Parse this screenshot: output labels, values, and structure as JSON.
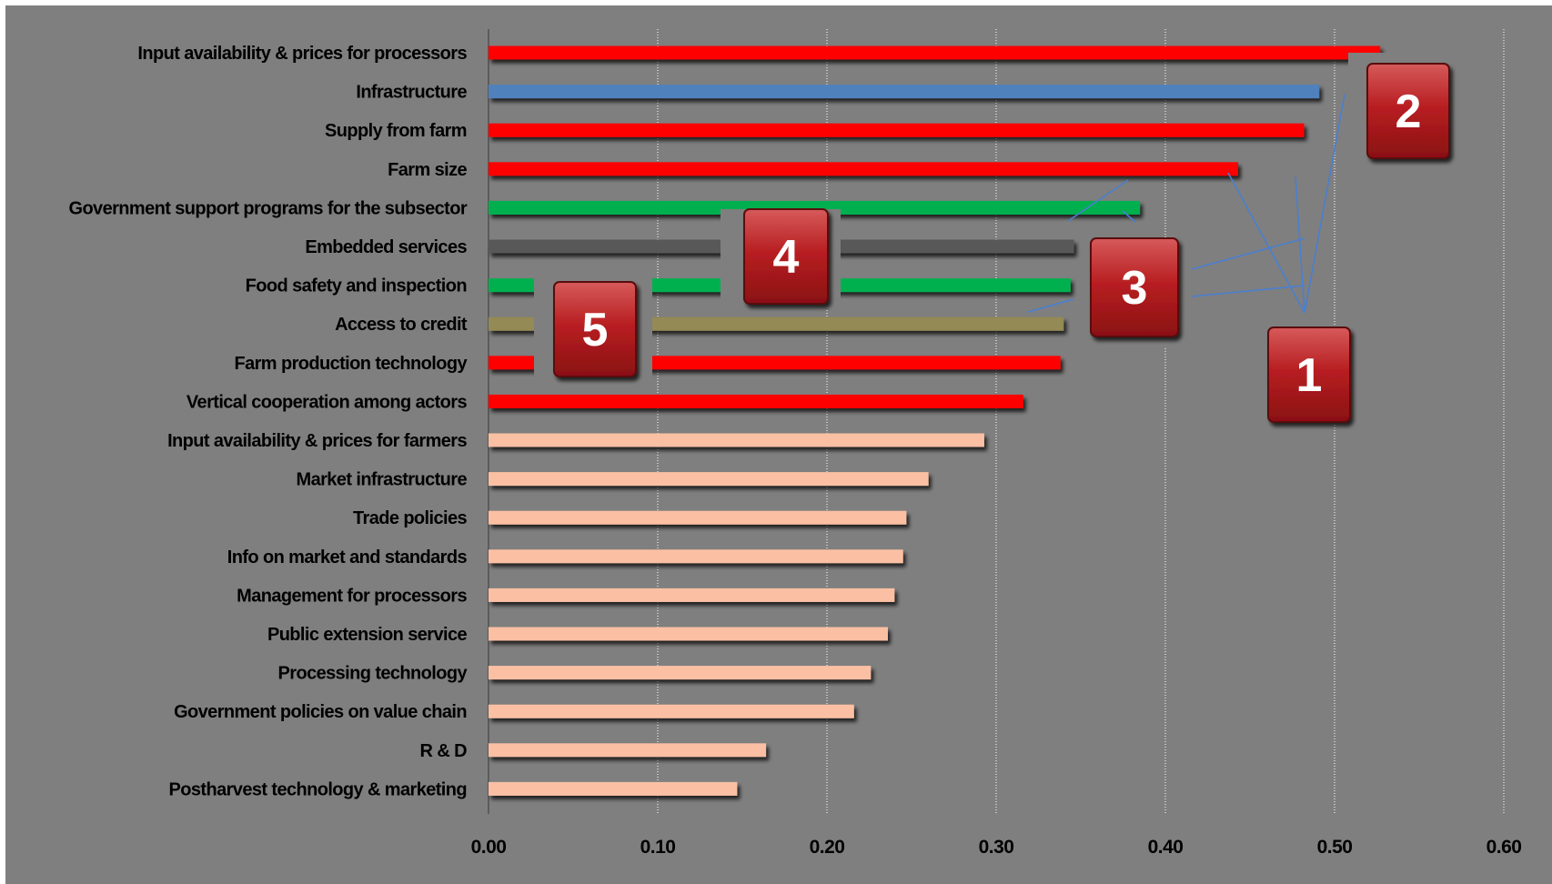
{
  "chart_data": {
    "type": "bar",
    "orientation": "horizontal",
    "title": "",
    "xlabel": "",
    "ylabel": "",
    "xlim": [
      0,
      0.6
    ],
    "x_ticks": [
      "0.00",
      "0.10",
      "0.20",
      "0.30",
      "0.40",
      "0.50",
      "0.60"
    ],
    "grid": true,
    "legend": "none",
    "categories": [
      "Input availability & prices for processors",
      "Infrastructure",
      "Supply from farm",
      "Farm size",
      "Government support programs for the subsector",
      "Embedded services",
      "Food safety and inspection",
      "Access to credit",
      "Farm production technology",
      "Vertical cooperation among actors",
      "Input availability & prices for farmers",
      "Market infrastructure",
      "Trade policies",
      "Info on market and standards",
      "Management for processors",
      "Public extension  service",
      "Processing technology",
      "Government policies on value chain",
      "R & D",
      "Postharvest technology & marketing"
    ],
    "values": [
      0.527,
      0.491,
      0.482,
      0.443,
      0.385,
      0.346,
      0.344,
      0.34,
      0.338,
      0.316,
      0.293,
      0.26,
      0.247,
      0.245,
      0.24,
      0.236,
      0.226,
      0.216,
      0.164,
      0.147
    ],
    "bar_colors": [
      "#ff0000",
      "#4f81bd",
      "#ff0000",
      "#ff0000",
      "#00b050",
      "#595959",
      "#00b050",
      "#948a54",
      "#ff0000",
      "#ff0000",
      "#fbc0a4",
      "#fbc0a4",
      "#fbc0a4",
      "#fbc0a4",
      "#fbc0a4",
      "#fbc0a4",
      "#fbc0a4",
      "#fbc0a4",
      "#fbc0a4",
      "#fbc0a4"
    ],
    "annotations": [
      {
        "label": "1",
        "color": "#c0292b"
      },
      {
        "label": "2",
        "color": "#c0292b"
      },
      {
        "label": "3",
        "color": "#c0292b"
      },
      {
        "label": "4",
        "color": "#c0292b"
      },
      {
        "label": "5",
        "color": "#c0292b"
      }
    ]
  }
}
